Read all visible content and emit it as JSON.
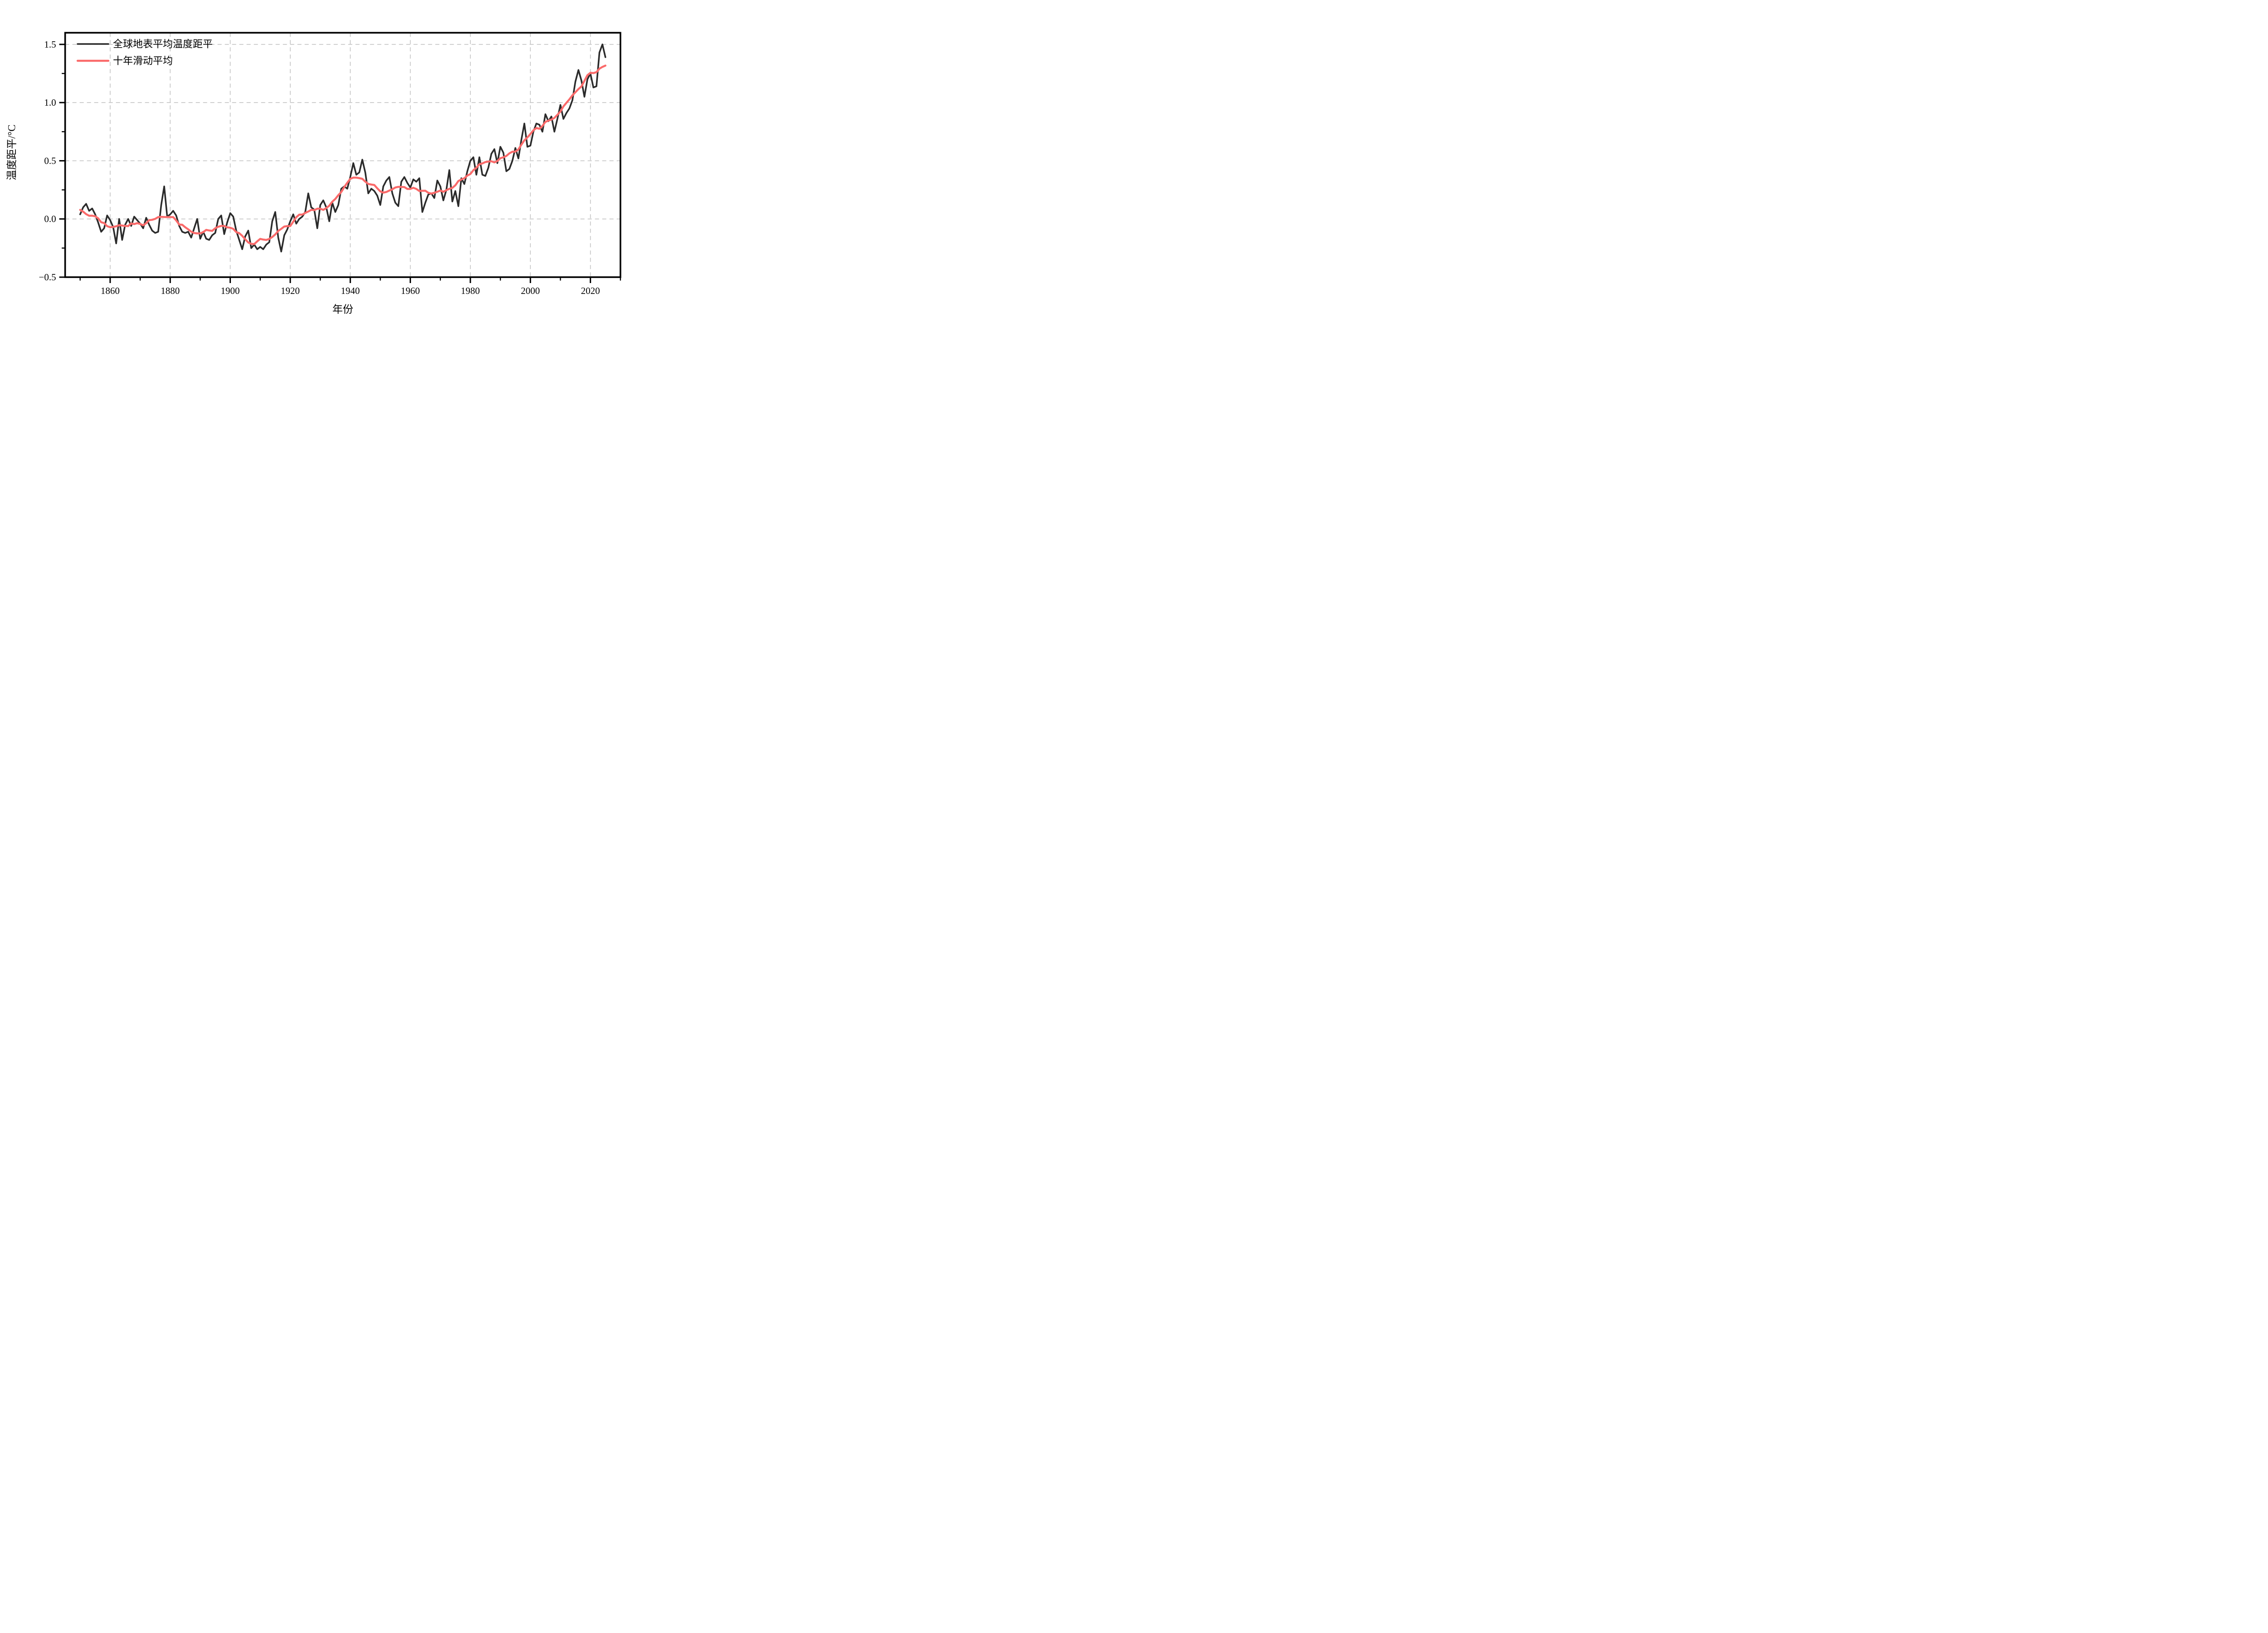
{
  "figure": {
    "background": "#ffffff"
  },
  "colors": {
    "annual_line": "#2b2b2b",
    "moving_avg_line": "#fa6a6a",
    "grid": "#c3c3c3",
    "spine": "#000000",
    "text": "#000000"
  },
  "axes": {
    "xlabel": "年份",
    "ylabel": "温度距平/°C",
    "x_tick_labels": [
      "1860",
      "1880",
      "1900",
      "1920",
      "1940",
      "1960",
      "1980",
      "2000",
      "2020"
    ],
    "y_tick_labels": [
      "−0.5",
      "0.0",
      "0.5",
      "1.0",
      "1.5"
    ]
  },
  "legend": {
    "position": "upper-left",
    "items": [
      {
        "label": "全球地表平均温度距平",
        "color_key": "annual_line"
      },
      {
        "label": "十年滑动平均",
        "color_key": "moving_avg_line"
      }
    ]
  },
  "chart_data": {
    "type": "line",
    "title": "",
    "xlabel": "年份",
    "ylabel": "温度距平/°C",
    "xlim": [
      1845,
      2030
    ],
    "ylim": [
      -0.5,
      1.6
    ],
    "x_major_ticks": [
      1860,
      1880,
      1900,
      1920,
      1940,
      1960,
      1980,
      2000,
      2020
    ],
    "x_minor_ticks": [
      1850,
      1870,
      1890,
      1910,
      1930,
      1950,
      1970,
      1990,
      2010,
      2030
    ],
    "y_major_ticks": [
      -0.5,
      0.0,
      0.5,
      1.0,
      1.5
    ],
    "y_minor_ticks": [
      -0.25,
      0.25,
      0.75,
      1.25
    ],
    "grid": {
      "show": true,
      "style": "dashed",
      "which": "major",
      "color": "#c3c3c3"
    },
    "legend_position": "upper-left",
    "series": [
      {
        "name": "全球地表平均温度距平",
        "color": "#2b2b2b",
        "x_start": 1850,
        "x_end": 2025,
        "x_step": 1,
        "values": [
          0.04,
          0.1,
          0.13,
          0.07,
          0.09,
          0.04,
          -0.03,
          -0.11,
          -0.08,
          0.03,
          -0.01,
          -0.07,
          -0.21,
          0.0,
          -0.18,
          -0.05,
          0.0,
          -0.06,
          0.02,
          -0.01,
          -0.04,
          -0.08,
          0.01,
          -0.05,
          -0.1,
          -0.12,
          -0.11,
          0.12,
          0.28,
          0.02,
          0.04,
          0.07,
          0.03,
          -0.06,
          -0.11,
          -0.12,
          -0.11,
          -0.16,
          -0.08,
          0.0,
          -0.17,
          -0.11,
          -0.17,
          -0.18,
          -0.14,
          -0.12,
          0.0,
          0.03,
          -0.13,
          -0.03,
          0.05,
          0.02,
          -0.1,
          -0.18,
          -0.26,
          -0.15,
          -0.1,
          -0.25,
          -0.22,
          -0.26,
          -0.24,
          -0.26,
          -0.22,
          -0.2,
          -0.02,
          0.06,
          -0.16,
          -0.28,
          -0.14,
          -0.09,
          -0.02,
          0.04,
          -0.04,
          0.0,
          0.02,
          0.06,
          0.22,
          0.1,
          0.08,
          -0.08,
          0.12,
          0.16,
          0.1,
          -0.02,
          0.14,
          0.06,
          0.12,
          0.26,
          0.28,
          0.26,
          0.36,
          0.48,
          0.38,
          0.4,
          0.51,
          0.4,
          0.22,
          0.26,
          0.24,
          0.2,
          0.12,
          0.28,
          0.33,
          0.36,
          0.22,
          0.14,
          0.11,
          0.32,
          0.36,
          0.31,
          0.27,
          0.34,
          0.32,
          0.35,
          0.06,
          0.14,
          0.21,
          0.22,
          0.18,
          0.33,
          0.28,
          0.16,
          0.25,
          0.42,
          0.15,
          0.24,
          0.11,
          0.35,
          0.3,
          0.41,
          0.5,
          0.53,
          0.38,
          0.53,
          0.38,
          0.37,
          0.44,
          0.56,
          0.6,
          0.48,
          0.62,
          0.57,
          0.41,
          0.43,
          0.5,
          0.61,
          0.52,
          0.68,
          0.82,
          0.62,
          0.63,
          0.75,
          0.82,
          0.81,
          0.75,
          0.9,
          0.84,
          0.88,
          0.75,
          0.86,
          0.98,
          0.86,
          0.91,
          0.95,
          1.02,
          1.18,
          1.28,
          1.19,
          1.05,
          1.2,
          1.25,
          1.13,
          1.14,
          1.43,
          1.5,
          1.39
        ]
      },
      {
        "name": "十年滑动平均",
        "color": "#fa6a6a",
        "derived": "centered 10-year moving average of the annual series (computed from the values above)"
      }
    ]
  }
}
